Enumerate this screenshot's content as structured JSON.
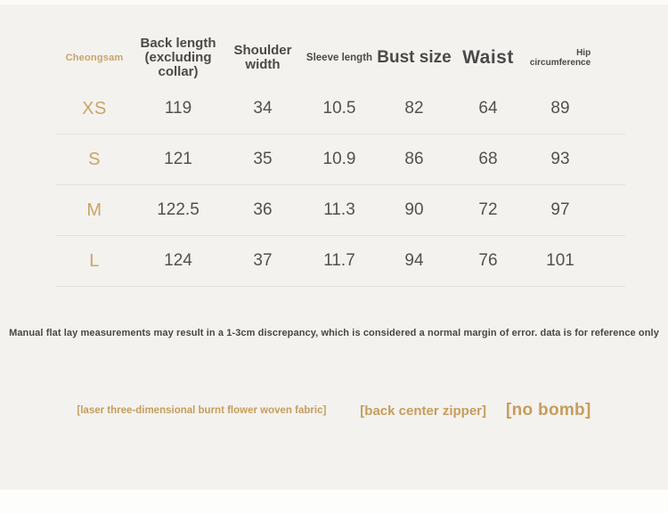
{
  "colors": {
    "background": "#f4f2ee",
    "accent_gold": "#c59d5c",
    "accent_gold_light": "#c8a468",
    "text_dark": "#4a4a4a",
    "value_text": "#515151",
    "divider": "#e5e2db",
    "footer_strip": "#fdfdfc"
  },
  "chart_data": {
    "type": "table",
    "title": "Cheongsam size chart",
    "columns": [
      "Cheongsam",
      "Back length (excluding collar)",
      "Shoulder width",
      "Sleeve length",
      "Bust size",
      "Waist",
      "Hip circumference"
    ],
    "rows": [
      [
        "XS",
        119,
        34,
        10.5,
        82,
        64,
        89
      ],
      [
        "S",
        121,
        35,
        10.9,
        86,
        68,
        93
      ],
      [
        "M",
        122.5,
        36,
        11.3,
        90,
        72,
        97
      ],
      [
        "L",
        124,
        37,
        11.7,
        94,
        76,
        101
      ]
    ]
  },
  "display": {
    "product_label": "Cheongsam",
    "header_lines": {
      "back_length": [
        "Back length",
        "(excluding",
        "collar)"
      ],
      "shoulder_width": [
        "Shoulder",
        "width"
      ],
      "sleeve_length": "Sleeve length",
      "bust_size": "Bust size",
      "waist": "Waist",
      "hip": [
        "Hip",
        "circumference"
      ]
    },
    "footnote": "Manual flat lay measurements may result in a 1-3cm discrepancy, which is considered a normal margin of error. data is for reference only",
    "highlights": [
      "[laser three-dimensional burnt flower woven fabric]",
      "[back center zipper]",
      "[no bomb]"
    ]
  }
}
